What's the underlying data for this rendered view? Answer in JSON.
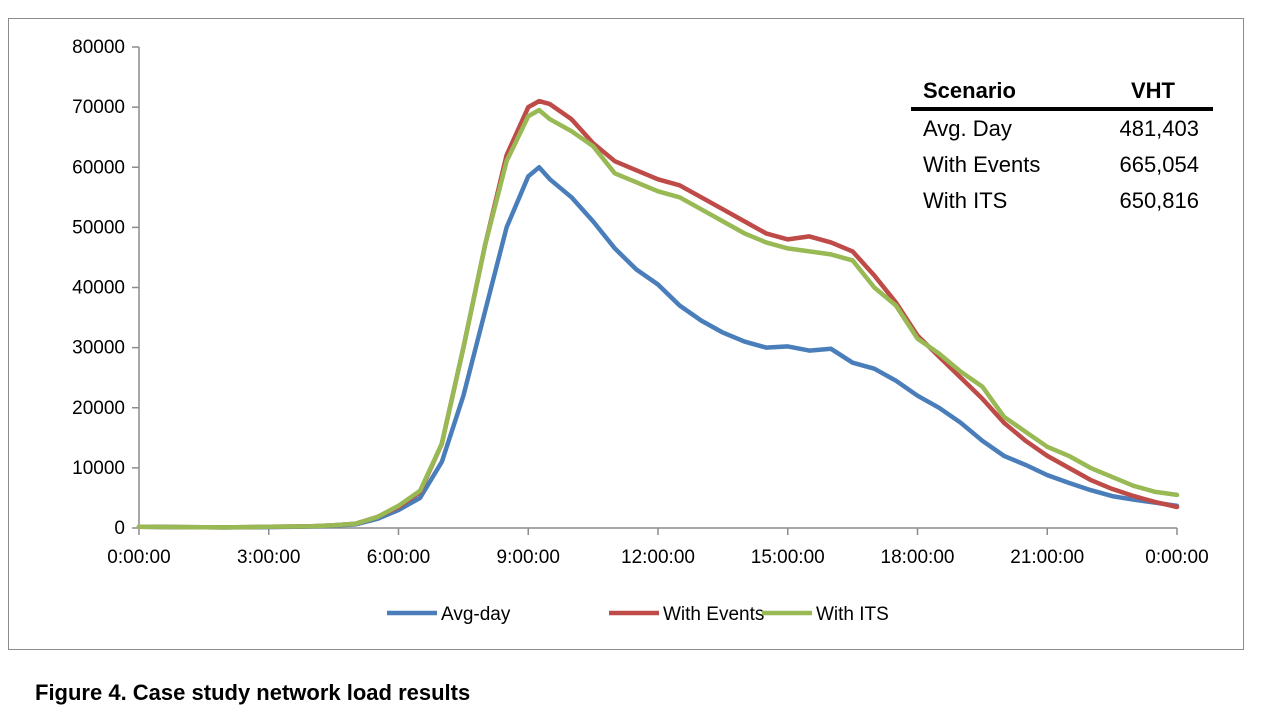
{
  "caption": "Figure 4.  Case study network load results",
  "vht_table": {
    "headers": [
      "Scenario",
      "VHT"
    ],
    "rows": [
      {
        "scenario": "Avg. Day",
        "vht": "481,403"
      },
      {
        "scenario": "With Events",
        "vht": "665,054"
      },
      {
        "scenario": "With ITS",
        "vht": "650,816"
      }
    ]
  },
  "chart_data": {
    "type": "line",
    "title": "",
    "xlabel": "",
    "ylabel": "",
    "ylim": [
      0,
      80000
    ],
    "xlim_hours": [
      0,
      24
    ],
    "yticks": [
      0,
      10000,
      20000,
      30000,
      40000,
      50000,
      60000,
      70000,
      80000
    ],
    "xtick_labels": [
      "0:00:00",
      "3:00:00",
      "6:00:00",
      "9:00:00",
      "12:00:00",
      "15:00:00",
      "18:00:00",
      "21:00:00",
      "0:00:00"
    ],
    "grid": false,
    "legend_position": "bottom",
    "series": [
      {
        "name": "Avg-day",
        "color": "#4a7ebb",
        "points": [
          [
            "0:00",
            200
          ],
          [
            "1:00",
            150
          ],
          [
            "2:00",
            100
          ],
          [
            "3:00",
            150
          ],
          [
            "4:00",
            250
          ],
          [
            "4:30",
            400
          ],
          [
            "5:00",
            600
          ],
          [
            "5:30",
            1500
          ],
          [
            "6:00",
            3000
          ],
          [
            "6:30",
            5000
          ],
          [
            "7:00",
            11000
          ],
          [
            "7:30",
            22000
          ],
          [
            "8:00",
            36000
          ],
          [
            "8:30",
            50000
          ],
          [
            "9:00",
            58500
          ],
          [
            "9:15",
            60000
          ],
          [
            "9:30",
            58000
          ],
          [
            "10:00",
            55000
          ],
          [
            "10:30",
            51000
          ],
          [
            "11:00",
            46500
          ],
          [
            "11:30",
            43000
          ],
          [
            "12:00",
            40500
          ],
          [
            "12:30",
            37000
          ],
          [
            "13:00",
            34500
          ],
          [
            "13:30",
            32500
          ],
          [
            "14:00",
            31000
          ],
          [
            "14:30",
            30000
          ],
          [
            "15:00",
            30200
          ],
          [
            "15:30",
            29500
          ],
          [
            "16:00",
            29800
          ],
          [
            "16:30",
            27500
          ],
          [
            "17:00",
            26500
          ],
          [
            "17:30",
            24500
          ],
          [
            "18:00",
            22000
          ],
          [
            "18:30",
            20000
          ],
          [
            "19:00",
            17500
          ],
          [
            "19:30",
            14500
          ],
          [
            "20:00",
            12000
          ],
          [
            "20:30",
            10500
          ],
          [
            "21:00",
            8800
          ],
          [
            "21:30",
            7500
          ],
          [
            "22:00",
            6300
          ],
          [
            "22:30",
            5300
          ],
          [
            "23:00",
            4700
          ],
          [
            "23:30",
            4200
          ],
          [
            "24:00",
            3700
          ]
        ]
      },
      {
        "name": "With Events",
        "color": "#be4b48",
        "points": [
          [
            "0:00",
            200
          ],
          [
            "1:00",
            150
          ],
          [
            "2:00",
            100
          ],
          [
            "3:00",
            200
          ],
          [
            "4:00",
            300
          ],
          [
            "4:30",
            450
          ],
          [
            "5:00",
            700
          ],
          [
            "5:30",
            1800
          ],
          [
            "6:00",
            3500
          ],
          [
            "6:30",
            6000
          ],
          [
            "7:00",
            14000
          ],
          [
            "7:30",
            30000
          ],
          [
            "8:00",
            47000
          ],
          [
            "8:30",
            62000
          ],
          [
            "9:00",
            70000
          ],
          [
            "9:15",
            71000
          ],
          [
            "9:30",
            70500
          ],
          [
            "10:00",
            68000
          ],
          [
            "10:30",
            64000
          ],
          [
            "11:00",
            61000
          ],
          [
            "11:30",
            59500
          ],
          [
            "12:00",
            58000
          ],
          [
            "12:30",
            57000
          ],
          [
            "13:00",
            55000
          ],
          [
            "13:30",
            53000
          ],
          [
            "14:00",
            51000
          ],
          [
            "14:30",
            49000
          ],
          [
            "15:00",
            48000
          ],
          [
            "15:30",
            48500
          ],
          [
            "16:00",
            47500
          ],
          [
            "16:30",
            46000
          ],
          [
            "17:00",
            42000
          ],
          [
            "17:30",
            37500
          ],
          [
            "18:00",
            32000
          ],
          [
            "18:30",
            28500
          ],
          [
            "19:00",
            25000
          ],
          [
            "19:30",
            21500
          ],
          [
            "20:00",
            17500
          ],
          [
            "20:30",
            14500
          ],
          [
            "21:00",
            12000
          ],
          [
            "21:30",
            10000
          ],
          [
            "22:00",
            8000
          ],
          [
            "22:30",
            6500
          ],
          [
            "23:00",
            5300
          ],
          [
            "23:30",
            4300
          ],
          [
            "24:00",
            3500
          ]
        ]
      },
      {
        "name": "With ITS",
        "color": "#98b954",
        "points": [
          [
            "0:00",
            200
          ],
          [
            "1:00",
            150
          ],
          [
            "2:00",
            100
          ],
          [
            "3:00",
            200
          ],
          [
            "4:00",
            300
          ],
          [
            "4:30",
            450
          ],
          [
            "5:00",
            700
          ],
          [
            "5:30",
            1800
          ],
          [
            "6:00",
            3700
          ],
          [
            "6:30",
            6200
          ],
          [
            "7:00",
            14000
          ],
          [
            "7:30",
            30000
          ],
          [
            "8:00",
            47000
          ],
          [
            "8:30",
            61000
          ],
          [
            "9:00",
            68500
          ],
          [
            "9:15",
            69500
          ],
          [
            "9:30",
            68000
          ],
          [
            "10:00",
            66000
          ],
          [
            "10:30",
            63500
          ],
          [
            "11:00",
            59000
          ],
          [
            "11:30",
            57500
          ],
          [
            "12:00",
            56000
          ],
          [
            "12:30",
            55000
          ],
          [
            "13:00",
            53000
          ],
          [
            "13:30",
            51000
          ],
          [
            "14:00",
            49000
          ],
          [
            "14:30",
            47500
          ],
          [
            "15:00",
            46500
          ],
          [
            "15:30",
            46000
          ],
          [
            "16:00",
            45500
          ],
          [
            "16:30",
            44500
          ],
          [
            "17:00",
            40000
          ],
          [
            "17:30",
            37000
          ],
          [
            "18:00",
            31500
          ],
          [
            "18:30",
            29000
          ],
          [
            "19:00",
            26000
          ],
          [
            "19:30",
            23500
          ],
          [
            "20:00",
            18500
          ],
          [
            "20:30",
            16000
          ],
          [
            "21:00",
            13500
          ],
          [
            "21:30",
            12000
          ],
          [
            "22:00",
            10000
          ],
          [
            "22:30",
            8500
          ],
          [
            "23:00",
            7000
          ],
          [
            "23:30",
            6000
          ],
          [
            "24:00",
            5500
          ]
        ]
      }
    ]
  }
}
